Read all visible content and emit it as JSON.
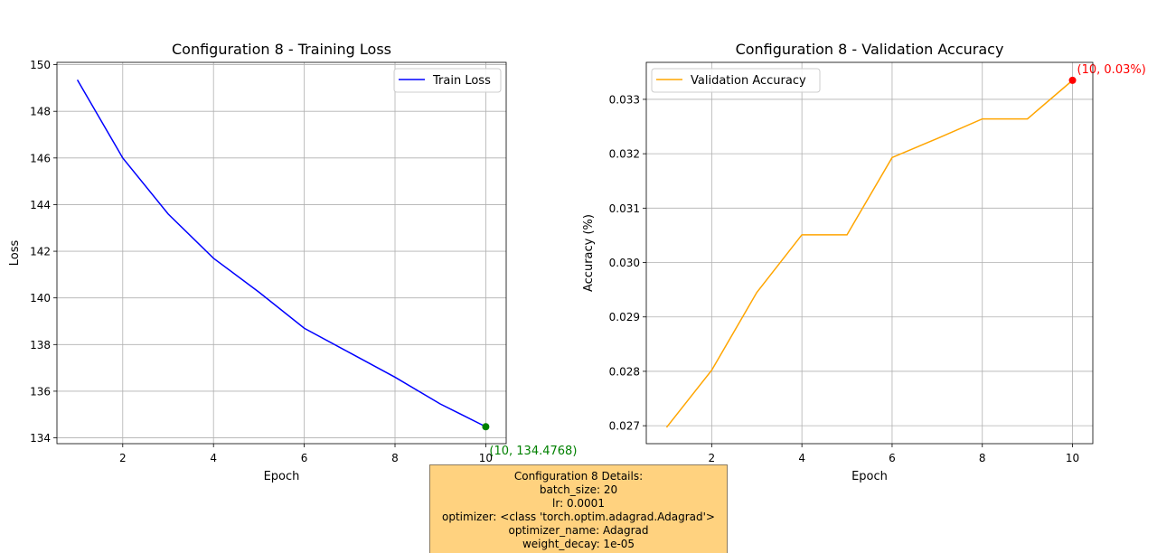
{
  "chart_data": [
    {
      "type": "line",
      "title": "Configuration 8 - Training Loss",
      "xlabel": "Epoch",
      "ylabel": "Loss",
      "x": [
        1,
        2,
        3,
        4,
        5,
        6,
        7,
        8,
        9,
        10
      ],
      "series": [
        {
          "name": "Train Loss",
          "color": "#0000ff",
          "values": [
            149.35,
            146.0,
            143.6,
            141.7,
            140.25,
            138.7,
            137.65,
            136.6,
            135.45,
            134.4768
          ]
        }
      ],
      "xlim": [
        0.55,
        10.45
      ],
      "ylim": [
        133.75,
        150.1
      ],
      "xticks": [
        2,
        4,
        6,
        8,
        10
      ],
      "yticks": [
        134,
        136,
        138,
        140,
        142,
        144,
        146,
        148,
        150
      ],
      "grid": true,
      "legend": "upper right",
      "highlight": {
        "x": 10,
        "y": 134.4768,
        "color": "#008000",
        "label": "(10, 134.4768)"
      }
    },
    {
      "type": "line",
      "title": "Configuration 8 - Validation Accuracy",
      "xlabel": "Epoch",
      "ylabel": "Accuracy (%)",
      "x": [
        1,
        2,
        3,
        4,
        5,
        6,
        7,
        8,
        9,
        10
      ],
      "series": [
        {
          "name": "Validation Accuracy",
          "color": "#ffa500",
          "values": [
            0.02697,
            0.02802,
            0.02945,
            0.03051,
            0.03051,
            0.03193,
            0.03228,
            0.03264,
            0.03264,
            0.03335
          ]
        }
      ],
      "xlim": [
        0.55,
        10.45
      ],
      "ylim": [
        0.02667,
        0.03368
      ],
      "xticks": [
        2,
        4,
        6,
        8,
        10
      ],
      "yticks": [
        0.027,
        0.028,
        0.029,
        0.03,
        0.031,
        0.032,
        0.033
      ],
      "ytick_labels": [
        "0.027",
        "0.028",
        "0.029",
        "0.030",
        "0.031",
        "0.032",
        "0.033"
      ],
      "grid": true,
      "legend": "upper left",
      "highlight": {
        "x": 10,
        "y": 0.03335,
        "color": "#ff0000",
        "label": "(10, 0.03%)"
      }
    }
  ],
  "details": {
    "lines": [
      "Configuration 8 Details:",
      "batch_size: 20",
      "lr: 0.0001",
      "optimizer: <class 'torch.optim.adagrad.Adagrad'>",
      "optimizer_name: Adagrad",
      "weight_decay: 1e-05"
    ],
    "background": "#ffd27f"
  }
}
